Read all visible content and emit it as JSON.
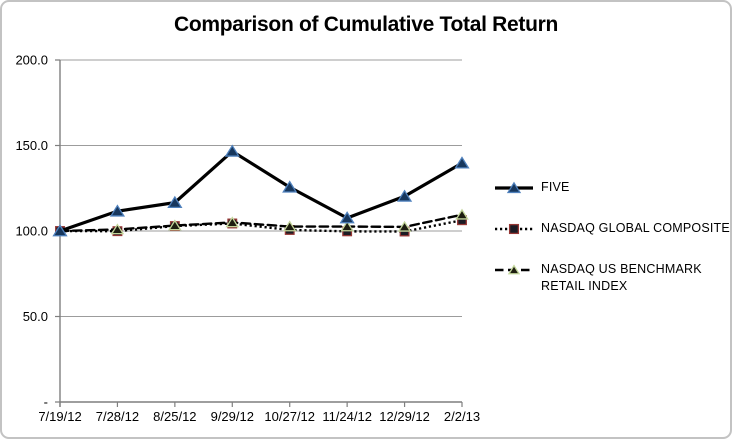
{
  "frame": {
    "background": "#ffffff",
    "border_color": "#c3c3c3"
  },
  "chart_data": {
    "type": "line",
    "title": "Comparison of Cumulative Total Return",
    "categories": [
      "7/19/12",
      "7/28/12",
      "8/25/12",
      "9/29/12",
      "10/27/12",
      "11/24/12",
      "12/29/12",
      "2/2/13"
    ],
    "series": [
      {
        "name": "FIVE",
        "values": [
          100.0,
          111.6,
          116.6,
          146.6,
          125.6,
          107.6,
          120.3,
          139.7
        ],
        "line_style": "solid",
        "line_color": "#000000",
        "marker": "triangle",
        "marker_fill": "#17375D",
        "marker_edge": "#4F81BD"
      },
      {
        "name": "NASDAQ GLOBAL COMPOSITE",
        "values": [
          100.0,
          99.9,
          102.9,
          104.4,
          100.6,
          99.8,
          99.7,
          106.3
        ],
        "line_style": "dotted",
        "line_color": "#000000",
        "marker": "square",
        "marker_fill": "#1B1B24",
        "marker_edge": "#953735"
      },
      {
        "name": "NASDAQ US BENCHMARK RETAIL INDEX",
        "values": [
          100.0,
          100.9,
          103.2,
          105.0,
          102.6,
          102.6,
          102.4,
          109.5
        ],
        "line_style": "dashed",
        "line_color": "#000000",
        "marker": "triangle",
        "marker_fill": "#1D1D10",
        "marker_edge": "#C3D69B"
      }
    ],
    "y_ticks": [
      {
        "value": 200,
        "label": "200.0"
      },
      {
        "value": 150,
        "label": "150.0"
      },
      {
        "value": 100,
        "label": "100.0"
      },
      {
        "value": 50,
        "label": "50.0"
      },
      {
        "value": 0,
        "label": "-"
      }
    ],
    "ylim": [
      0,
      200
    ],
    "grid": true,
    "legend_position": "right"
  },
  "style_colors": {
    "axis": "#7F7F7F",
    "gridline": "#9C9C9C",
    "text": "#000000"
  }
}
